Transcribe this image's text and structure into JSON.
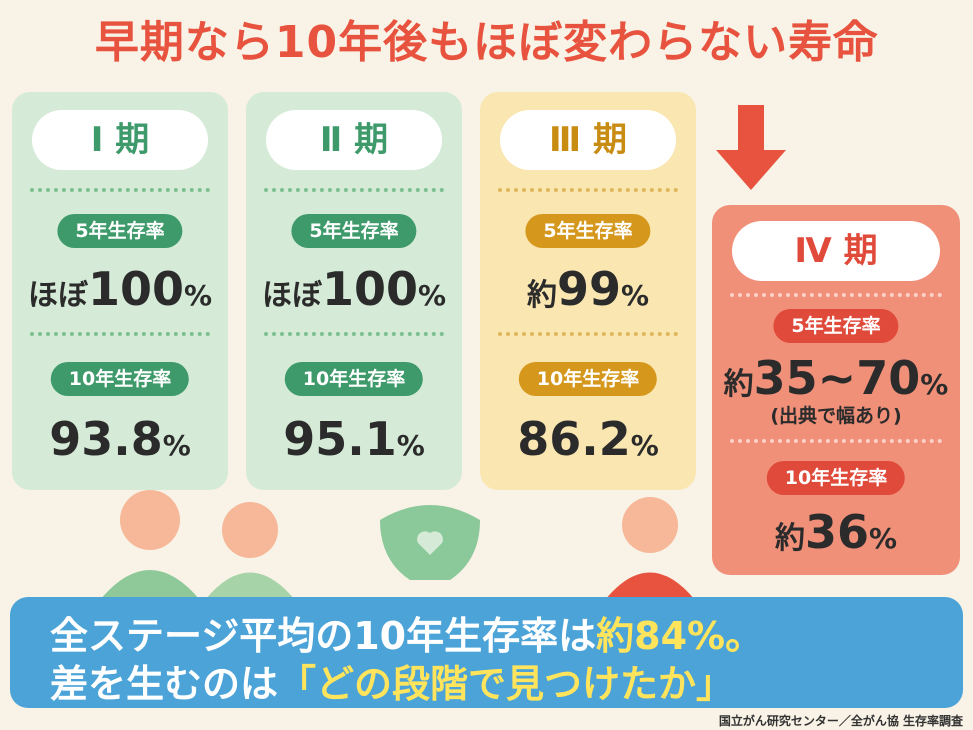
{
  "title": "早期なら10年後もほぼ変わらない寿命",
  "stages": [
    {
      "label": "Ⅰ 期",
      "five_year_label": "5年生存率",
      "five_year": {
        "prefix": "ほぼ",
        "number": "100",
        "unit": "%"
      },
      "ten_year_label": "10年生存率",
      "ten_year": {
        "number": "93.8",
        "unit": "%"
      }
    },
    {
      "label": "Ⅱ 期",
      "five_year_label": "5年生存率",
      "five_year": {
        "prefix": "ほぼ",
        "number": "100",
        "unit": "%"
      },
      "ten_year_label": "10年生存率",
      "ten_year": {
        "number": "95.1",
        "unit": "%"
      }
    },
    {
      "label": "Ⅲ 期",
      "five_year_label": "5年生存率",
      "five_year": {
        "prefix": "約",
        "number": "99",
        "unit": "%"
      },
      "ten_year_label": "10年生存率",
      "ten_year": {
        "number": "86.2",
        "unit": "%"
      }
    },
    {
      "label": "Ⅳ 期",
      "five_year_label": "5年生存率",
      "five_year": {
        "prefix": "約",
        "number": "35~70",
        "unit": "%"
      },
      "note": "(出典で幅あり)",
      "ten_year_label": "10年生存率",
      "ten_year": {
        "prefix": "約",
        "number": "36",
        "unit": "%"
      }
    }
  ],
  "banner": {
    "line1": {
      "text": "全ステージ平均の10年生存率は",
      "highlight": "約84%。"
    },
    "line2": {
      "text": "差を生むのは",
      "highlight": "「どの段階で見つけたか」"
    }
  },
  "source": "国立がん研究センター／全がん協 生存率調査"
}
